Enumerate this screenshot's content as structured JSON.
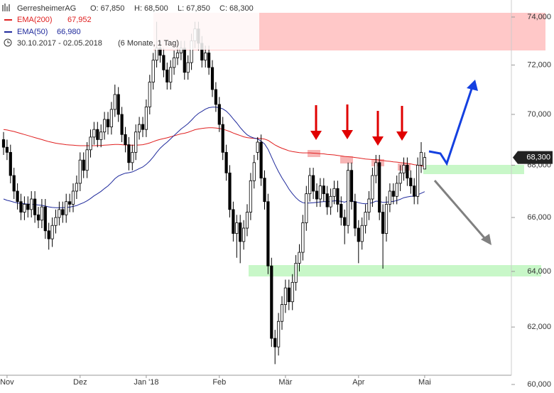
{
  "chart_data": {
    "type": "candlestick",
    "info": {
      "name": "GerresheimerAG",
      "open": "O: 67,850",
      "high": "H: 68,500",
      "low": "L: 67,850",
      "close": "C: 68,300",
      "period": "30.10.2017 - 02.05.2018",
      "interval": "(6 Monate, 1 Tag)"
    },
    "last_price_label": "68,300",
    "log_scale": true,
    "grid": false,
    "up_color": "#ffffff",
    "down_color": "#000000",
    "ylim": [
      60000,
      74300
    ],
    "yticks": [
      {
        "value": 60000,
        "label": "60,000"
      },
      {
        "value": 62000,
        "label": "62,000"
      },
      {
        "value": 64000,
        "label": "64,000"
      },
      {
        "value": 66000,
        "label": "66,000"
      },
      {
        "value": 68000,
        "label": "68,000"
      },
      {
        "value": 70000,
        "label": "70,000"
      },
      {
        "value": 72000,
        "label": "72,000"
      },
      {
        "value": 74000,
        "label": "74,000"
      }
    ],
    "categories": [
      null,
      "Nov",
      null,
      null,
      null,
      null,
      null,
      null,
      null,
      null,
      null,
      null,
      null,
      null,
      null,
      null,
      null,
      null,
      null,
      null,
      null,
      null,
      "Dez",
      null,
      null,
      null,
      null,
      null,
      null,
      null,
      null,
      null,
      null,
      null,
      null,
      null,
      null,
      null,
      null,
      null,
      null,
      "Jan '18",
      null,
      null,
      null,
      null,
      null,
      null,
      null,
      null,
      null,
      null,
      null,
      null,
      null,
      null,
      null,
      null,
      null,
      null,
      null,
      null,
      "Feb",
      null,
      null,
      null,
      null,
      null,
      null,
      null,
      null,
      null,
      null,
      null,
      null,
      null,
      null,
      null,
      null,
      null,
      null,
      "Mär",
      null,
      null,
      null,
      null,
      null,
      null,
      null,
      null,
      null,
      null,
      null,
      null,
      null,
      null,
      null,
      null,
      null,
      null,
      null,
      null,
      "Apr",
      null,
      null,
      null,
      null,
      null,
      null,
      null,
      null,
      null,
      null,
      null,
      null,
      null,
      null,
      null,
      null,
      null,
      null,
      "Mai"
    ],
    "candles": {
      "open": [
        69000,
        68700,
        68500,
        67600,
        67000,
        66600,
        66200,
        66500,
        66300,
        66700,
        66100,
        65900,
        66400,
        65500,
        65200,
        65700,
        66000,
        66300,
        66100,
        66600,
        66500,
        67000,
        67300,
        68200,
        67800,
        68600,
        69100,
        69400,
        69000,
        69300,
        69800,
        69500,
        70200,
        70800,
        70000,
        69200,
        68800,
        68100,
        68500,
        69300,
        69600,
        69400,
        70300,
        71300,
        72200,
        72700,
        72400,
        71800,
        71300,
        71900,
        72300,
        72500,
        72700,
        71700,
        72100,
        73000,
        73500,
        72900,
        72200,
        72500,
        71900,
        71000,
        70400,
        69600,
        68500,
        67700,
        66300,
        65400,
        65800,
        65100,
        65600,
        66200,
        67400,
        68500,
        68900,
        67500,
        66600,
        64200,
        61600,
        61300,
        62200,
        62800,
        63400,
        62900,
        63600,
        64300,
        64700,
        65800,
        66900,
        67600,
        67000,
        66700,
        67200,
        66900,
        66400,
        66800,
        67100,
        66500,
        66000,
        65700,
        67800,
        66600,
        65600,
        65100,
        65700,
        66200,
        66700,
        67600,
        68100,
        66200,
        65400,
        66500,
        67000,
        66800,
        67300,
        67700,
        68000,
        67500,
        67200,
        66800,
        68000,
        67850
      ],
      "high": [
        69300,
        69000,
        68800,
        67900,
        67300,
        66900,
        66800,
        66800,
        67000,
        67000,
        66400,
        66700,
        66700,
        65800,
        66000,
        66300,
        66600,
        66600,
        66900,
        66900,
        67300,
        67600,
        68500,
        68500,
        68900,
        69400,
        69700,
        69700,
        69600,
        70100,
        70100,
        70500,
        71200,
        71100,
        70300,
        69500,
        69100,
        68800,
        69600,
        69900,
        69900,
        70600,
        71600,
        72500,
        73800,
        73000,
        72700,
        72100,
        72200,
        72600,
        72800,
        73000,
        73000,
        72400,
        73300,
        73800,
        73800,
        73200,
        72800,
        72800,
        72200,
        71300,
        70700,
        69900,
        68800,
        68000,
        66600,
        66100,
        66100,
        65900,
        66500,
        67700,
        68400,
        69100,
        69200,
        67800,
        66900,
        64500,
        61900,
        62500,
        63100,
        63700,
        63700,
        63900,
        64600,
        65000,
        66100,
        67200,
        67900,
        67900,
        67300,
        67500,
        67500,
        67200,
        67100,
        67400,
        67400,
        66800,
        66300,
        68100,
        68100,
        66900,
        65900,
        66000,
        66500,
        67000,
        67900,
        68400,
        68400,
        66500,
        66800,
        67300,
        67300,
        67600,
        68000,
        68300,
        68300,
        67800,
        67500,
        68300,
        68900,
        68500
      ],
      "low": [
        68400,
        68200,
        67300,
        66700,
        66300,
        65900,
        65900,
        66000,
        66000,
        65800,
        65600,
        65600,
        65200,
        64800,
        64900,
        65400,
        65700,
        65800,
        65800,
        66200,
        66200,
        66700,
        67000,
        67500,
        67500,
        68300,
        68800,
        68700,
        68700,
        69000,
        69200,
        69200,
        69900,
        69700,
        68900,
        68500,
        67800,
        67800,
        68200,
        69000,
        69100,
        69100,
        70000,
        71000,
        71900,
        72100,
        71500,
        71000,
        71000,
        71600,
        72000,
        72200,
        71400,
        71400,
        71800,
        72700,
        72600,
        71900,
        71900,
        71600,
        70700,
        70100,
        69300,
        68200,
        67400,
        66000,
        65100,
        64500,
        64300,
        64800,
        65300,
        65900,
        67100,
        68200,
        67200,
        66300,
        63900,
        61300,
        60700,
        61000,
        61900,
        62500,
        62600,
        62600,
        63300,
        64000,
        64400,
        65500,
        66600,
        66700,
        66400,
        66400,
        66600,
        66100,
        66100,
        66500,
        66200,
        65700,
        65000,
        65400,
        66300,
        65300,
        64300,
        64800,
        65400,
        65900,
        66400,
        67300,
        65900,
        64100,
        65100,
        66200,
        66500,
        66500,
        67000,
        67400,
        67200,
        66900,
        66500,
        66500,
        67700,
        67850
      ],
      "close": [
        68700,
        68500,
        67600,
        67000,
        66600,
        66200,
        66500,
        66300,
        66700,
        66100,
        65900,
        66400,
        65500,
        65200,
        65700,
        66000,
        66300,
        66100,
        66600,
        66500,
        67000,
        67300,
        68200,
        67800,
        68600,
        69100,
        69400,
        69000,
        69300,
        69800,
        69500,
        70200,
        70800,
        70000,
        69200,
        68800,
        68100,
        68500,
        69300,
        69600,
        69400,
        70300,
        71300,
        72200,
        72700,
        72400,
        71800,
        71300,
        71900,
        72300,
        72500,
        72700,
        71700,
        72100,
        73000,
        73500,
        72900,
        72200,
        72500,
        71900,
        71000,
        70400,
        69600,
        68500,
        67700,
        66300,
        65400,
        65800,
        65100,
        65600,
        66200,
        67400,
        68100,
        68900,
        67500,
        66600,
        64200,
        61600,
        61300,
        62200,
        62800,
        63400,
        62900,
        63600,
        64300,
        64700,
        65800,
        66900,
        67600,
        67000,
        66700,
        67200,
        66900,
        66400,
        66800,
        67100,
        66500,
        66000,
        65700,
        67800,
        66600,
        65600,
        65100,
        65700,
        66200,
        66700,
        67600,
        68100,
        66200,
        65400,
        66500,
        67000,
        66800,
        67300,
        67700,
        68000,
        67500,
        67200,
        66800,
        68000,
        68500,
        68300
      ]
    },
    "series": [
      {
        "name": "EMA(200)",
        "last_label": "67,952",
        "color": "#e02020",
        "values": [
          69400,
          69380,
          69350,
          69320,
          69280,
          69240,
          69200,
          69160,
          69120,
          69080,
          69040,
          69000,
          68960,
          68920,
          68890,
          68860,
          68840,
          68820,
          68800,
          68790,
          68780,
          68770,
          68760,
          68760,
          68760,
          68760,
          68760,
          68770,
          68770,
          68780,
          68790,
          68800,
          68810,
          68810,
          68800,
          68790,
          68780,
          68780,
          68780,
          68790,
          68800,
          68830,
          68870,
          68920,
          68970,
          69010,
          69040,
          69070,
          69110,
          69150,
          69190,
          69230,
          69250,
          69290,
          69340,
          69390,
          69420,
          69440,
          69460,
          69470,
          69470,
          69460,
          69440,
          69410,
          69370,
          69320,
          69260,
          69210,
          69160,
          69110,
          69080,
          69060,
          69050,
          69050,
          69040,
          69020,
          68970,
          68880,
          68790,
          68720,
          68660,
          68610,
          68560,
          68530,
          68510,
          68490,
          68480,
          68480,
          68480,
          68470,
          68460,
          68450,
          68440,
          68420,
          68410,
          68400,
          68380,
          68360,
          68340,
          68330,
          68320,
          68300,
          68280,
          68260,
          68240,
          68230,
          68220,
          68220,
          68200,
          68180,
          68160,
          68150,
          68130,
          68120,
          68100,
          68090,
          68070,
          68050,
          68020,
          68000,
          67980,
          67952
        ]
      },
      {
        "name": "EMA(50)",
        "last_label": "66,980",
        "color": "#1f2a9c",
        "values": [
          66700,
          66650,
          66620,
          66580,
          66550,
          66530,
          66520,
          66510,
          66500,
          66490,
          66470,
          66460,
          66430,
          66400,
          66380,
          66370,
          66370,
          66370,
          66380,
          66390,
          66420,
          66450,
          66510,
          66560,
          66630,
          66720,
          66820,
          66900,
          66990,
          67100,
          67200,
          67330,
          67480,
          67580,
          67640,
          67690,
          67710,
          67740,
          67800,
          67870,
          67930,
          68030,
          68160,
          68320,
          68500,
          68660,
          68790,
          68900,
          69030,
          69160,
          69290,
          69420,
          69520,
          69630,
          69770,
          69920,
          70040,
          70120,
          70210,
          70270,
          70290,
          70290,
          70270,
          70220,
          70130,
          69990,
          69820,
          69660,
          69480,
          69320,
          69190,
          69110,
          69060,
          69030,
          68940,
          68830,
          68620,
          68320,
          68020,
          67750,
          67510,
          67300,
          67080,
          66900,
          66750,
          66630,
          66560,
          66540,
          66550,
          66560,
          66570,
          66590,
          66600,
          66600,
          66610,
          66630,
          66630,
          66610,
          66580,
          66630,
          66630,
          66600,
          66560,
          66530,
          66520,
          66530,
          66560,
          66620,
          66610,
          66570,
          66580,
          66600,
          66610,
          66640,
          66690,
          66750,
          66780,
          66800,
          66810,
          66860,
          66920,
          66980
        ]
      }
    ]
  }
}
